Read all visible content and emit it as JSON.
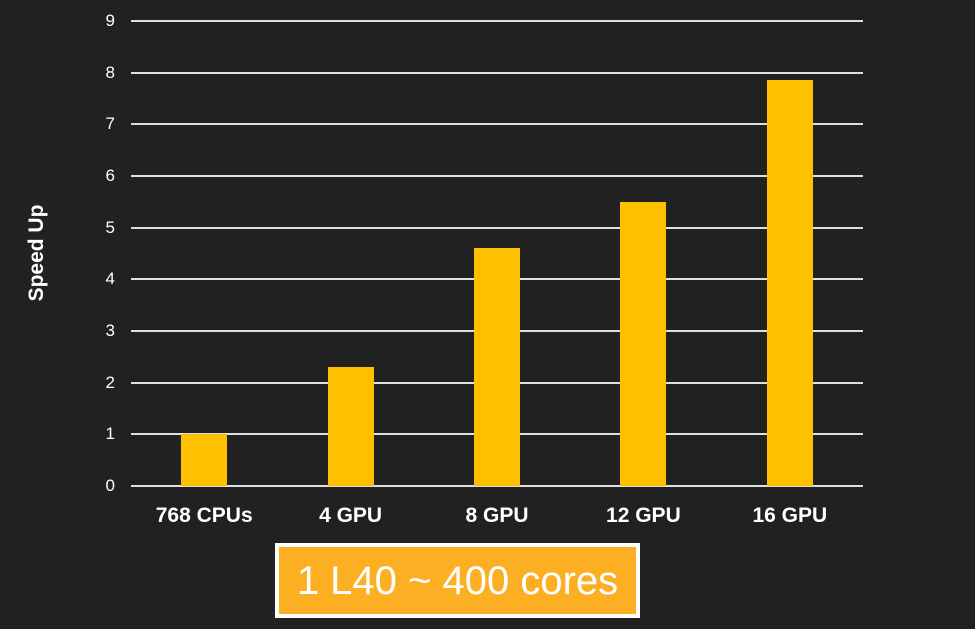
{
  "background": "#212121",
  "chart_data": {
    "type": "bar",
    "categories": [
      "768 CPUs",
      "4 GPU",
      "8 GPU",
      "12 GPU",
      "16 GPU"
    ],
    "values": [
      1,
      2.3,
      4.6,
      5.5,
      7.85
    ],
    "title": "",
    "xlabel": "",
    "ylabel": "Speed Up",
    "ylim": [
      0,
      9
    ],
    "yticks": [
      0,
      1,
      2,
      3,
      4,
      5,
      6,
      7,
      8,
      9
    ],
    "grid": true,
    "legend": "none",
    "bar_color": "#FFC000",
    "gridline_color": "#DEDEDE",
    "text_color": "#FFFFFF"
  },
  "caption": {
    "text": "1 L40 ~ 400 cores",
    "fill": "#FCAF23",
    "border_color": "#FFFFFF",
    "text_color": "#FFFFFF"
  }
}
